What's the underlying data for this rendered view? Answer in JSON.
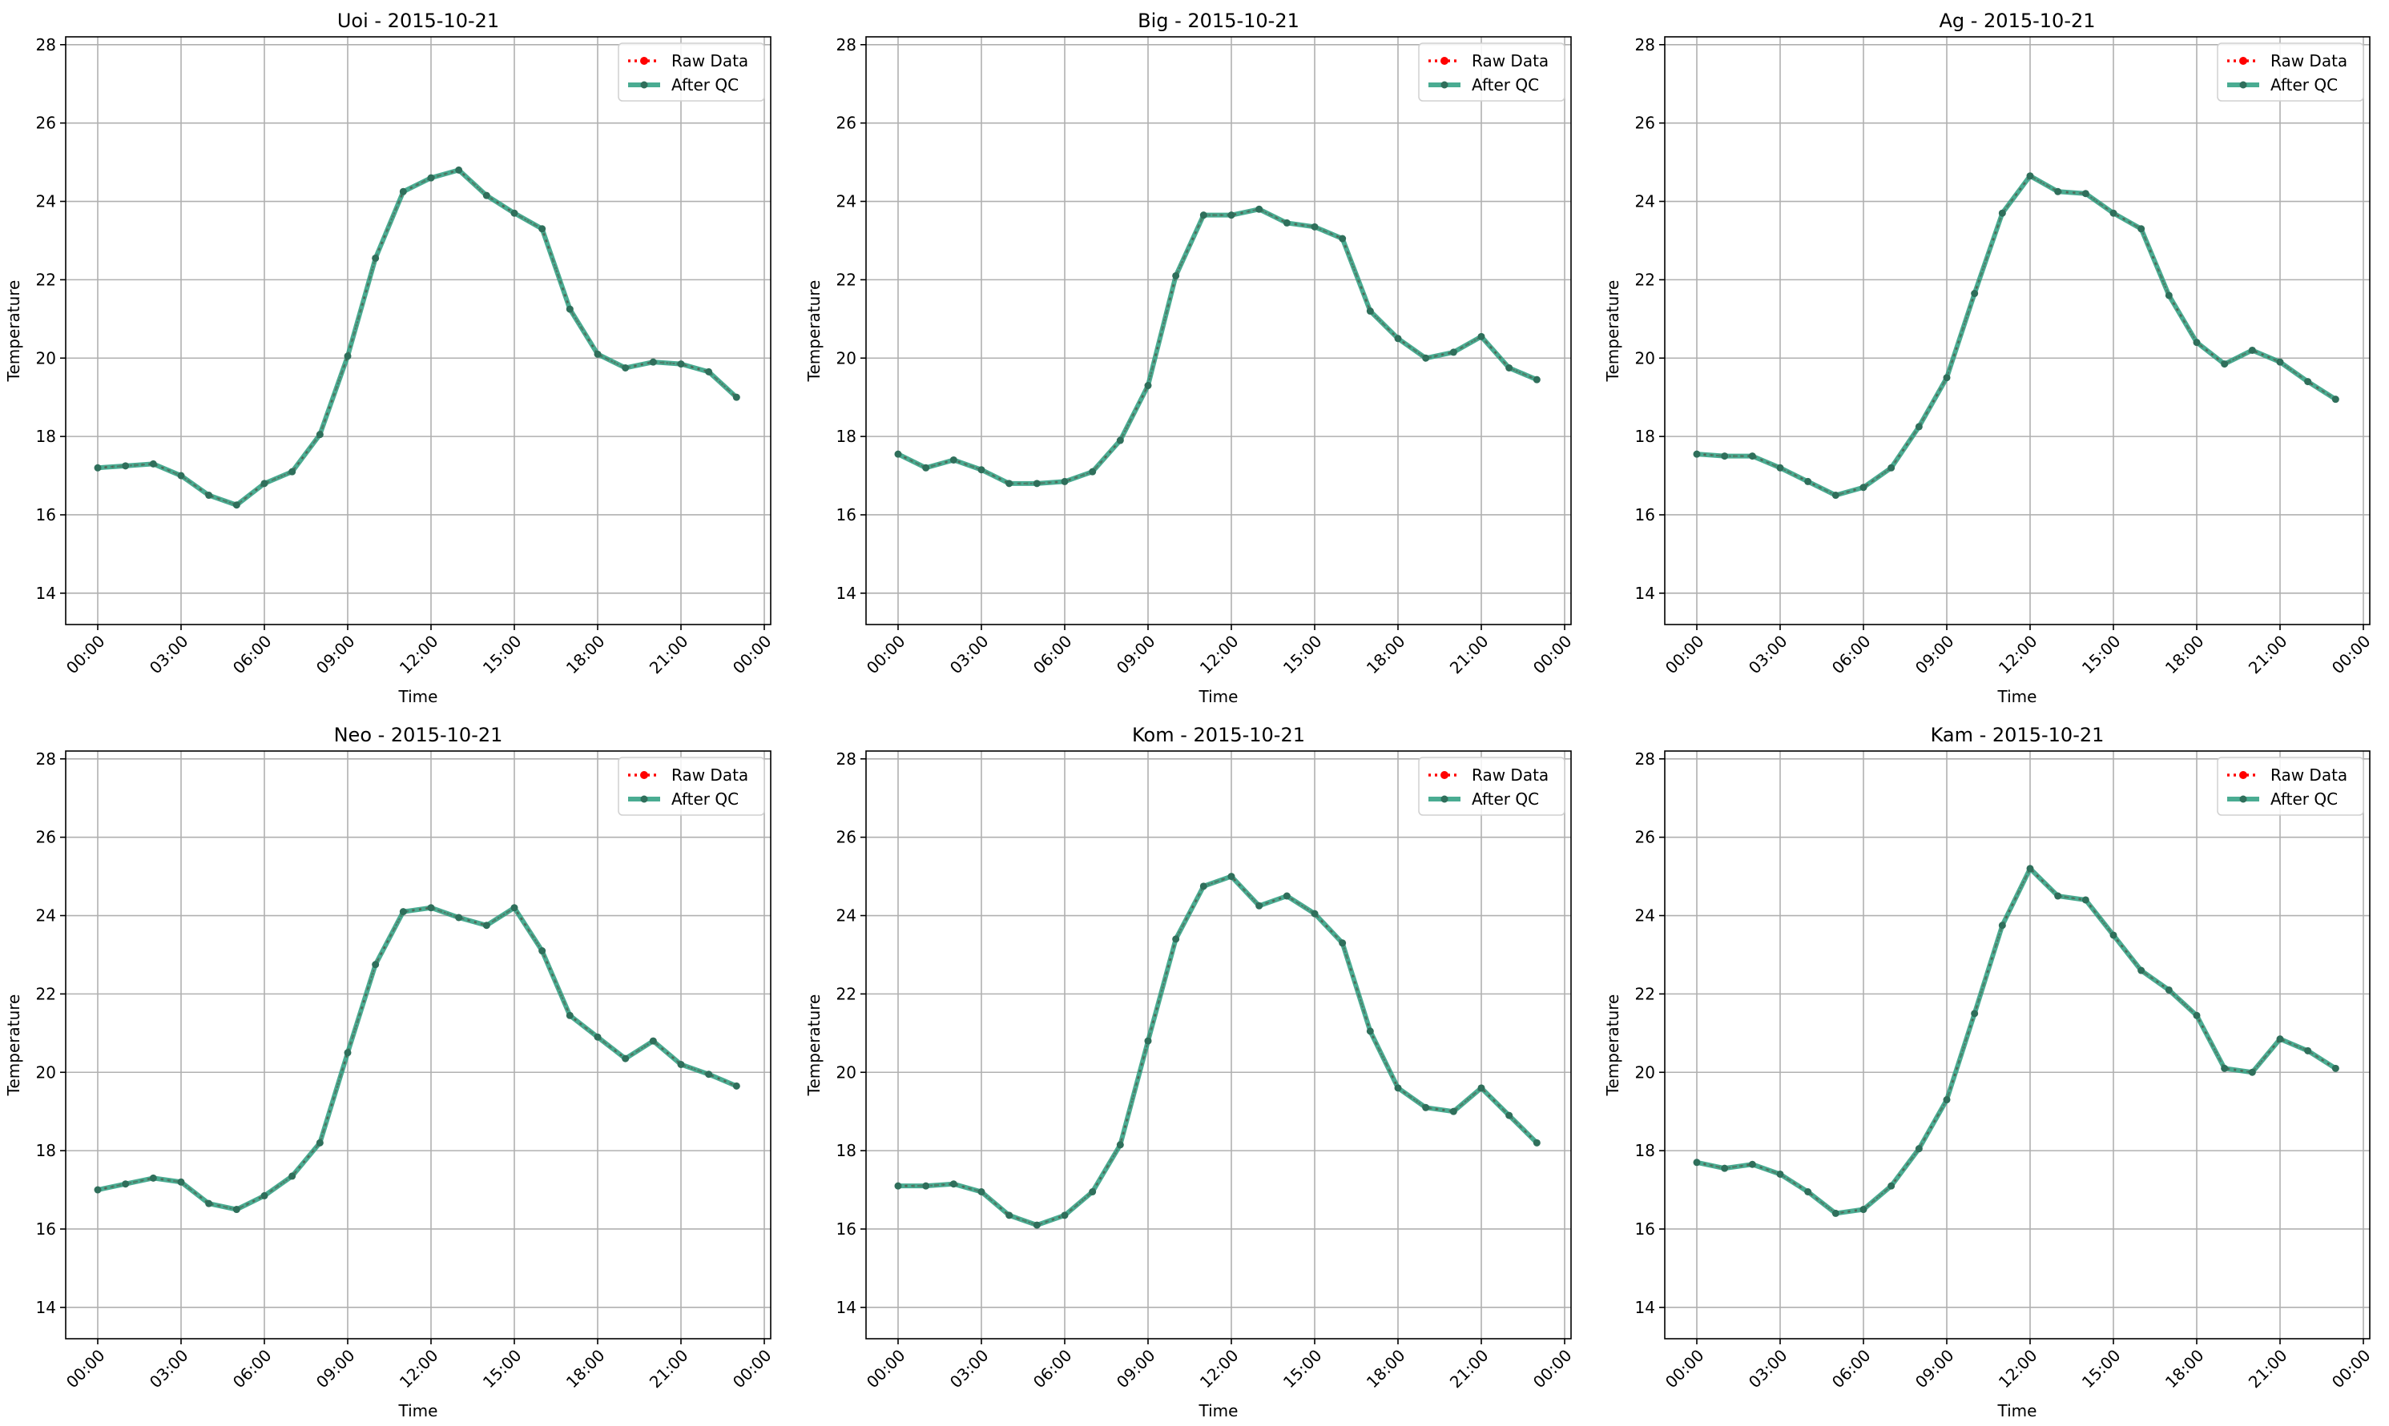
{
  "chart_data": [
    {
      "type": "line",
      "title": "Uoi - 2015-10-21",
      "xlabel": "Time",
      "ylabel": "Temperature",
      "ylim": [
        13.2,
        28.2
      ],
      "yticks": [
        14,
        16,
        18,
        20,
        22,
        24,
        26,
        28
      ],
      "xticks": [
        "00:00",
        "03:00",
        "06:00",
        "09:00",
        "12:00",
        "15:00",
        "18:00",
        "21:00",
        "00:00"
      ],
      "grid": true,
      "legend": "top-right",
      "x": [
        "00:00",
        "01:00",
        "02:00",
        "03:00",
        "04:00",
        "05:00",
        "06:00",
        "07:00",
        "08:00",
        "09:00",
        "10:00",
        "11:00",
        "12:00",
        "13:00",
        "14:00",
        "15:00",
        "16:00",
        "17:00",
        "18:00",
        "19:00",
        "20:00",
        "21:00",
        "22:00",
        "23:00"
      ],
      "series": [
        {
          "name": "Raw Data",
          "color": "#ff0000",
          "values": [
            17.2,
            17.25,
            17.3,
            17.0,
            16.5,
            16.25,
            16.8,
            17.1,
            18.05,
            20.05,
            22.55,
            24.25,
            24.6,
            24.8,
            24.15,
            23.7,
            23.3,
            21.25,
            20.1,
            19.75,
            19.9,
            19.85,
            19.65,
            19.0
          ]
        },
        {
          "name": "After QC",
          "color": "#2a9d7f",
          "values": [
            17.2,
            17.25,
            17.3,
            17.0,
            16.5,
            16.25,
            16.8,
            17.1,
            18.05,
            20.05,
            22.55,
            24.25,
            24.6,
            24.8,
            24.15,
            23.7,
            23.3,
            21.25,
            20.1,
            19.75,
            19.9,
            19.85,
            19.65,
            19.0
          ]
        }
      ]
    },
    {
      "type": "line",
      "title": "Big - 2015-10-21",
      "xlabel": "Time",
      "ylabel": "Temperature",
      "ylim": [
        13.2,
        28.2
      ],
      "yticks": [
        14,
        16,
        18,
        20,
        22,
        24,
        26,
        28
      ],
      "xticks": [
        "00:00",
        "03:00",
        "06:00",
        "09:00",
        "12:00",
        "15:00",
        "18:00",
        "21:00",
        "00:00"
      ],
      "grid": true,
      "legend": "top-right",
      "x": [
        "00:00",
        "01:00",
        "02:00",
        "03:00",
        "04:00",
        "05:00",
        "06:00",
        "07:00",
        "08:00",
        "09:00",
        "10:00",
        "11:00",
        "12:00",
        "13:00",
        "14:00",
        "15:00",
        "16:00",
        "17:00",
        "18:00",
        "19:00",
        "20:00",
        "21:00",
        "22:00",
        "23:00"
      ],
      "series": [
        {
          "name": "Raw Data",
          "color": "#ff0000",
          "values": [
            17.55,
            17.2,
            17.4,
            17.15,
            16.8,
            16.8,
            16.85,
            17.1,
            17.9,
            19.3,
            22.1,
            23.65,
            23.65,
            23.8,
            23.45,
            23.35,
            23.05,
            21.2,
            20.5,
            20.0,
            20.15,
            20.55,
            19.75,
            19.45
          ]
        },
        {
          "name": "After QC",
          "color": "#2a9d7f",
          "values": [
            17.55,
            17.2,
            17.4,
            17.15,
            16.8,
            16.8,
            16.85,
            17.1,
            17.9,
            19.3,
            22.1,
            23.65,
            23.65,
            23.8,
            23.45,
            23.35,
            23.05,
            21.2,
            20.5,
            20.0,
            20.15,
            20.55,
            19.75,
            19.45
          ]
        }
      ]
    },
    {
      "type": "line",
      "title": "Ag - 2015-10-21",
      "xlabel": "Time",
      "ylabel": "Temperature",
      "ylim": [
        13.2,
        28.2
      ],
      "yticks": [
        14,
        16,
        18,
        20,
        22,
        24,
        26,
        28
      ],
      "xticks": [
        "00:00",
        "03:00",
        "06:00",
        "09:00",
        "12:00",
        "15:00",
        "18:00",
        "21:00",
        "00:00"
      ],
      "grid": true,
      "legend": "top-right",
      "x": [
        "00:00",
        "01:00",
        "02:00",
        "03:00",
        "04:00",
        "05:00",
        "06:00",
        "07:00",
        "08:00",
        "09:00",
        "10:00",
        "11:00",
        "12:00",
        "13:00",
        "14:00",
        "15:00",
        "16:00",
        "17:00",
        "18:00",
        "19:00",
        "20:00",
        "21:00",
        "22:00",
        "23:00"
      ],
      "series": [
        {
          "name": "Raw Data",
          "color": "#ff0000",
          "values": [
            17.55,
            17.5,
            17.5,
            17.2,
            16.85,
            16.5,
            16.7,
            17.2,
            18.25,
            19.5,
            21.65,
            23.7,
            24.65,
            24.25,
            24.2,
            23.7,
            23.3,
            21.6,
            20.4,
            19.85,
            20.2,
            19.9,
            19.4,
            18.95
          ]
        },
        {
          "name": "After QC",
          "color": "#2a9d7f",
          "values": [
            17.55,
            17.5,
            17.5,
            17.2,
            16.85,
            16.5,
            16.7,
            17.2,
            18.25,
            19.5,
            21.65,
            23.7,
            24.65,
            24.25,
            24.2,
            23.7,
            23.3,
            21.6,
            20.4,
            19.85,
            20.2,
            19.9,
            19.4,
            18.95
          ]
        }
      ]
    },
    {
      "type": "line",
      "title": "Neo - 2015-10-21",
      "xlabel": "Time",
      "ylabel": "Temperature",
      "ylim": [
        13.2,
        28.2
      ],
      "yticks": [
        14,
        16,
        18,
        20,
        22,
        24,
        26,
        28
      ],
      "xticks": [
        "00:00",
        "03:00",
        "06:00",
        "09:00",
        "12:00",
        "15:00",
        "18:00",
        "21:00",
        "00:00"
      ],
      "grid": true,
      "legend": "top-right",
      "x": [
        "00:00",
        "01:00",
        "02:00",
        "03:00",
        "04:00",
        "05:00",
        "06:00",
        "07:00",
        "08:00",
        "09:00",
        "10:00",
        "11:00",
        "12:00",
        "13:00",
        "14:00",
        "15:00",
        "16:00",
        "17:00",
        "18:00",
        "19:00",
        "20:00",
        "21:00",
        "22:00",
        "23:00"
      ],
      "series": [
        {
          "name": "Raw Data",
          "color": "#ff0000",
          "values": [
            17.0,
            17.15,
            17.3,
            17.2,
            16.65,
            16.5,
            16.85,
            17.35,
            18.2,
            20.5,
            22.75,
            24.1,
            24.2,
            23.95,
            23.75,
            24.2,
            23.1,
            21.45,
            20.9,
            20.35,
            20.8,
            20.2,
            19.95,
            19.65
          ]
        },
        {
          "name": "After QC",
          "color": "#2a9d7f",
          "values": [
            17.0,
            17.15,
            17.3,
            17.2,
            16.65,
            16.5,
            16.85,
            17.35,
            18.2,
            20.5,
            22.75,
            24.1,
            24.2,
            23.95,
            23.75,
            24.2,
            23.1,
            21.45,
            20.9,
            20.35,
            20.8,
            20.2,
            19.95,
            19.65
          ]
        }
      ]
    },
    {
      "type": "line",
      "title": "Kom - 2015-10-21",
      "xlabel": "Time",
      "ylabel": "Temperature",
      "ylim": [
        13.2,
        28.2
      ],
      "yticks": [
        14,
        16,
        18,
        20,
        22,
        24,
        26,
        28
      ],
      "xticks": [
        "00:00",
        "03:00",
        "06:00",
        "09:00",
        "12:00",
        "15:00",
        "18:00",
        "21:00",
        "00:00"
      ],
      "grid": true,
      "legend": "top-right",
      "x": [
        "00:00",
        "01:00",
        "02:00",
        "03:00",
        "04:00",
        "05:00",
        "06:00",
        "07:00",
        "08:00",
        "09:00",
        "10:00",
        "11:00",
        "12:00",
        "13:00",
        "14:00",
        "15:00",
        "16:00",
        "17:00",
        "18:00",
        "19:00",
        "20:00",
        "21:00",
        "22:00",
        "23:00"
      ],
      "series": [
        {
          "name": "Raw Data",
          "color": "#ff0000",
          "values": [
            17.1,
            17.1,
            17.15,
            16.95,
            16.35,
            16.1,
            16.35,
            16.95,
            18.15,
            20.8,
            23.4,
            24.75,
            25.0,
            24.25,
            24.5,
            24.05,
            23.3,
            21.05,
            19.6,
            19.1,
            19.0,
            19.6,
            18.9,
            18.2
          ]
        },
        {
          "name": "After QC",
          "color": "#2a9d7f",
          "values": [
            17.1,
            17.1,
            17.15,
            16.95,
            16.35,
            16.1,
            16.35,
            16.95,
            18.15,
            20.8,
            23.4,
            24.75,
            25.0,
            24.25,
            24.5,
            24.05,
            23.3,
            21.05,
            19.6,
            19.1,
            19.0,
            19.6,
            18.9,
            18.2
          ]
        }
      ]
    },
    {
      "type": "line",
      "title": "Kam - 2015-10-21",
      "xlabel": "Time",
      "ylabel": "Temperature",
      "ylim": [
        13.2,
        28.2
      ],
      "yticks": [
        14,
        16,
        18,
        20,
        22,
        24,
        26,
        28
      ],
      "xticks": [
        "00:00",
        "03:00",
        "06:00",
        "09:00",
        "12:00",
        "15:00",
        "18:00",
        "21:00",
        "00:00"
      ],
      "grid": true,
      "legend": "top-right",
      "x": [
        "00:00",
        "01:00",
        "02:00",
        "03:00",
        "04:00",
        "05:00",
        "06:00",
        "07:00",
        "08:00",
        "09:00",
        "10:00",
        "11:00",
        "12:00",
        "13:00",
        "14:00",
        "15:00",
        "16:00",
        "17:00",
        "18:00",
        "19:00",
        "20:00",
        "21:00",
        "22:00",
        "23:00"
      ],
      "series": [
        {
          "name": "Raw Data",
          "color": "#ff0000",
          "values": [
            17.7,
            17.55,
            17.65,
            17.4,
            16.95,
            16.4,
            16.5,
            17.1,
            18.05,
            19.3,
            21.5,
            23.75,
            25.2,
            24.5,
            24.4,
            23.5,
            22.6,
            22.1,
            21.45,
            20.1,
            20.0,
            20.85,
            20.55,
            20.1
          ]
        },
        {
          "name": "After QC",
          "color": "#2a9d7f",
          "values": [
            17.7,
            17.55,
            17.65,
            17.4,
            16.95,
            16.4,
            16.5,
            17.1,
            18.05,
            19.3,
            21.5,
            23.75,
            25.2,
            24.5,
            24.4,
            23.5,
            22.6,
            22.1,
            21.45,
            20.1,
            20.0,
            20.85,
            20.55,
            20.1
          ]
        }
      ]
    }
  ]
}
